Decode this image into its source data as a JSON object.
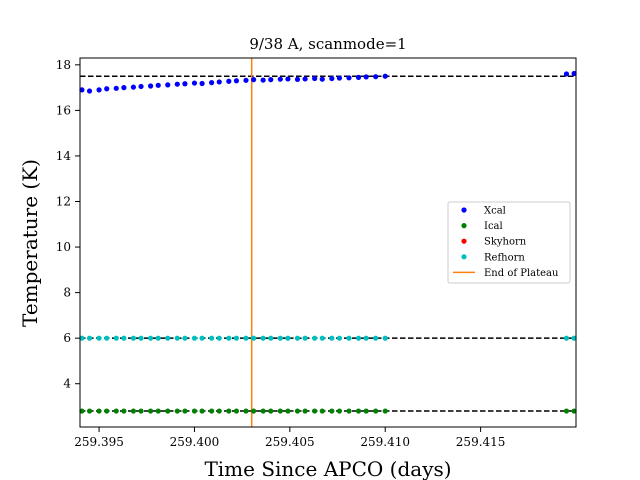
{
  "chart_data": {
    "type": "scatter",
    "title": "9/38 A, scanmode=1",
    "xlabel": "Time Since APCO (days)",
    "ylabel": "Temperature (K)",
    "xlim": [
      259.394,
      259.42
    ],
    "ylim": [
      2.1,
      18.3
    ],
    "x_ticks": [
      259.395,
      259.4,
      259.405,
      259.41,
      259.415
    ],
    "x_tick_labels": [
      "259.395",
      "259.400",
      "259.405",
      "259.410",
      "259.415"
    ],
    "y_ticks": [
      4,
      6,
      8,
      10,
      12,
      14,
      16,
      18
    ],
    "y_tick_labels": [
      "4",
      "6",
      "8",
      "10",
      "12",
      "14",
      "16",
      "18"
    ],
    "grid": false,
    "legend_position": "center-right",
    "series": [
      {
        "name": "Xcal",
        "color": "#0000ff",
        "x": [
          259.3941,
          259.3945,
          259.395,
          259.3954,
          259.3959,
          259.3963,
          259.3968,
          259.3972,
          259.3977,
          259.3981,
          259.3986,
          259.3991,
          259.3995,
          259.4,
          259.4004,
          259.4009,
          259.4013,
          259.4018,
          259.4022,
          259.4027,
          259.4031,
          259.4036,
          259.404,
          259.4045,
          259.4049,
          259.4054,
          259.4058,
          259.4063,
          259.4067,
          259.4072,
          259.4076,
          259.4081,
          259.4086,
          259.409,
          259.4095,
          259.41,
          259.4195,
          259.4199
        ],
        "y": [
          16.9,
          16.85,
          16.9,
          16.95,
          16.97,
          17.0,
          17.02,
          17.05,
          17.07,
          17.1,
          17.12,
          17.15,
          17.17,
          17.2,
          17.18,
          17.22,
          17.25,
          17.28,
          17.3,
          17.32,
          17.35,
          17.33,
          17.35,
          17.37,
          17.38,
          17.36,
          17.38,
          17.4,
          17.37,
          17.4,
          17.42,
          17.43,
          17.45,
          17.47,
          17.48,
          17.5,
          17.6,
          17.62
        ]
      },
      {
        "name": "Ical",
        "color": "#008000",
        "x": [
          259.3941,
          259.3945,
          259.395,
          259.3954,
          259.3959,
          259.3963,
          259.3968,
          259.3972,
          259.3977,
          259.3981,
          259.3986,
          259.3991,
          259.3995,
          259.4,
          259.4004,
          259.4009,
          259.4013,
          259.4018,
          259.4022,
          259.4027,
          259.4031,
          259.4036,
          259.404,
          259.4045,
          259.4049,
          259.4054,
          259.4058,
          259.4063,
          259.4067,
          259.4072,
          259.4076,
          259.4081,
          259.4086,
          259.409,
          259.4095,
          259.41,
          259.4195,
          259.4199
        ],
        "y": [
          2.8,
          2.8,
          2.8,
          2.8,
          2.8,
          2.8,
          2.8,
          2.8,
          2.8,
          2.8,
          2.8,
          2.8,
          2.8,
          2.8,
          2.8,
          2.8,
          2.8,
          2.8,
          2.8,
          2.8,
          2.8,
          2.8,
          2.8,
          2.8,
          2.8,
          2.8,
          2.8,
          2.8,
          2.8,
          2.8,
          2.8,
          2.8,
          2.8,
          2.8,
          2.8,
          2.8,
          2.8,
          2.8
        ]
      },
      {
        "name": "Skyhorn",
        "color": "#ff0000",
        "x": [],
        "y": []
      },
      {
        "name": "Refhorn",
        "color": "#00bfbf",
        "x": [
          259.3941,
          259.3945,
          259.395,
          259.3954,
          259.3959,
          259.3963,
          259.3968,
          259.3972,
          259.3977,
          259.3981,
          259.3986,
          259.3991,
          259.3995,
          259.4,
          259.4004,
          259.4009,
          259.4013,
          259.4018,
          259.4022,
          259.4027,
          259.4031,
          259.4036,
          259.404,
          259.4045,
          259.4049,
          259.4054,
          259.4058,
          259.4063,
          259.4067,
          259.4072,
          259.4076,
          259.4081,
          259.4086,
          259.409,
          259.4095,
          259.41,
          259.4195,
          259.4199
        ],
        "y": [
          6.0,
          6.0,
          6.0,
          6.0,
          6.0,
          6.0,
          6.0,
          6.0,
          6.0,
          6.0,
          6.0,
          6.0,
          6.0,
          6.0,
          6.0,
          6.0,
          6.0,
          6.0,
          6.0,
          6.0,
          6.0,
          6.0,
          6.0,
          6.0,
          6.0,
          6.0,
          6.0,
          6.0,
          6.0,
          6.0,
          6.0,
          6.0,
          6.0,
          6.0,
          6.0,
          6.0,
          6.0,
          6.0
        ]
      }
    ],
    "reference_lines": {
      "color": "#000000",
      "style": "dashed",
      "y": [
        17.5,
        6.0,
        2.8
      ]
    },
    "end_of_plateau": {
      "name": "End of Plateau",
      "color": "#ff7f0e",
      "x": 259.403
    }
  }
}
